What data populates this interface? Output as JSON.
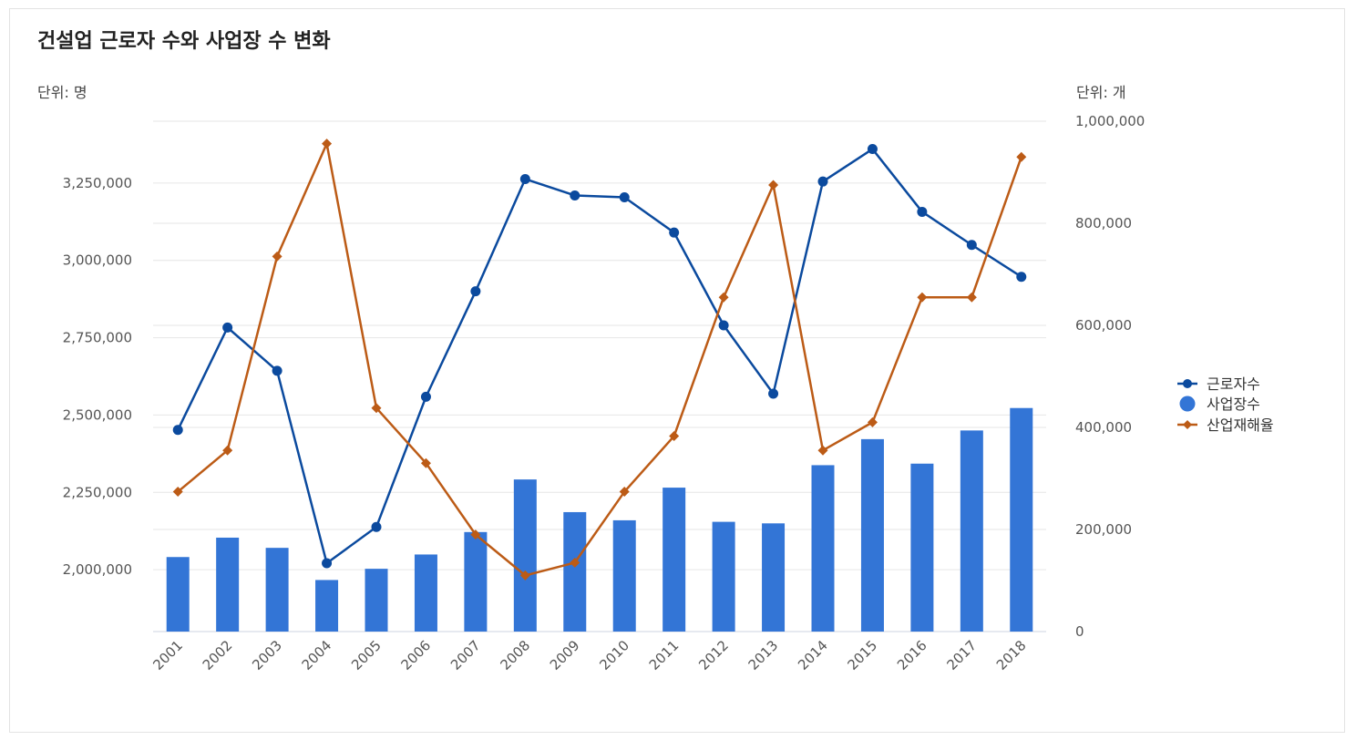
{
  "chart_data": {
    "type": "bar+line",
    "title": "건설업 근로자 수와 사업장 수 변화",
    "left_unit": "단위:  명",
    "right_unit": "단위:  개",
    "categories": [
      "2001",
      "2002",
      "2003",
      "2004",
      "2005",
      "2006",
      "2007",
      "2008",
      "2009",
      "2010",
      "2011",
      "2012",
      "2013",
      "2014",
      "2015",
      "2016",
      "2017",
      "2018"
    ],
    "left_axis": {
      "min": 1800000,
      "max": 3450000,
      "ticks": [
        2000000,
        2250000,
        2500000,
        2750000,
        3000000,
        3250000
      ],
      "tick_labels": [
        "2,000,000",
        "2,250,000",
        "2,500,000",
        "2,750,000",
        "3,000,000",
        "3,250,000"
      ]
    },
    "right_axis": {
      "min": 0,
      "max": 1000000,
      "ticks": [
        0,
        200000,
        400000,
        600000,
        800000,
        1000000
      ],
      "tick_labels": [
        "0",
        "200,000",
        "400,000",
        "600,000",
        "800,000",
        "1,000,000"
      ]
    },
    "series": [
      {
        "name": "근로자수",
        "type": "line",
        "axis": "left",
        "marker": "circle",
        "color": "#0b4a9e",
        "values": [
          2452000,
          2783000,
          2643000,
          2021000,
          2138000,
          2559000,
          2900000,
          3263000,
          3210000,
          3204000,
          3090000,
          2790000,
          2569000,
          3255000,
          3360000,
          3157000,
          3050000,
          2947000
        ]
      },
      {
        "name": "사업장수",
        "type": "bar",
        "axis": "right",
        "marker": "circle",
        "color": "#3375d6",
        "values": [
          146000,
          184000,
          164000,
          101000,
          123000,
          151000,
          195000,
          298000,
          234000,
          218000,
          282000,
          215000,
          212000,
          326000,
          377000,
          329000,
          394000,
          438000
        ]
      },
      {
        "name": "산업재해율",
        "type": "line",
        "axis": "right",
        "marker": "diamond",
        "color": "#bc5b16",
        "values": [
          274000,
          355000,
          735000,
          956000,
          438000,
          330000,
          190000,
          110000,
          135000,
          274000,
          383000,
          655000,
          875000,
          355000,
          410000,
          655000,
          655000,
          930000
        ]
      }
    ],
    "legend_position": "right",
    "grid": true
  }
}
